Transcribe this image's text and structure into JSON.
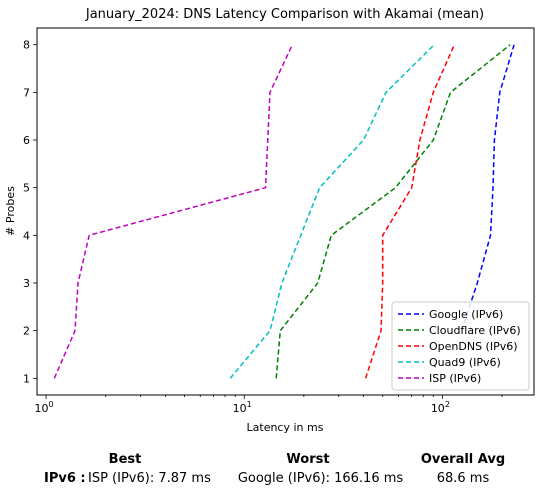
{
  "chart_data": {
    "type": "line",
    "title": "January_2024: DNS Latency Comparison with Akamai (mean)",
    "xlabel": "Latency in ms",
    "ylabel": "# Probes",
    "xscale": "log",
    "xlim": [
      0.9,
      290
    ],
    "ylim": [
      0.65,
      8.35
    ],
    "xticks": [
      1,
      10,
      100
    ],
    "xtick_labels": [
      "10^0",
      "10^1",
      "10^2"
    ],
    "yticks": [
      1,
      2,
      3,
      4,
      5,
      6,
      7,
      8
    ],
    "legend_position": "lower-right",
    "series": [
      {
        "name": "Google (IPv6)",
        "color": "#0000ff",
        "x": [
          125,
          150,
          175,
          180,
          183,
          195,
          230
        ],
        "y": [
          2,
          3,
          4,
          5,
          6,
          7,
          8
        ]
      },
      {
        "name": "Cloudflare (IPv6)",
        "color": "#008000",
        "x": [
          14.5,
          15.2,
          23.5,
          27.5,
          58,
          90,
          110,
          220
        ],
        "y": [
          1,
          2,
          3,
          4,
          5,
          6,
          7,
          8
        ]
      },
      {
        "name": "OpenDNS (IPv6)",
        "color": "#ff0000",
        "x": [
          41,
          49,
          50,
          50,
          70,
          77,
          90,
          115
        ],
        "y": [
          1,
          2,
          3,
          4,
          5,
          6,
          7,
          8
        ]
      },
      {
        "name": "Quad9 (IPv6)",
        "color": "#00bfbf",
        "x": [
          8.5,
          13.5,
          15.5,
          24,
          40,
          52,
          91
        ],
        "y": [
          1,
          2,
          3,
          5,
          6,
          7,
          8
        ]
      },
      {
        "name": "ISP (IPv6)",
        "color": "#bf00bf",
        "x": [
          1.1,
          1.4,
          1.45,
          1.65,
          12.8,
          13.5,
          17.5
        ],
        "y": [
          1,
          2,
          3,
          4,
          5,
          7,
          8
        ]
      }
    ]
  },
  "summary": {
    "best_label": "Best",
    "worst_label": "Worst",
    "avg_label": "Overall Avg",
    "row_label": "IPv6 :",
    "best_value": "ISP (IPv6): 7.87 ms",
    "worst_value": "Google (IPv6): 166.16 ms",
    "avg_value": "68.6 ms"
  }
}
